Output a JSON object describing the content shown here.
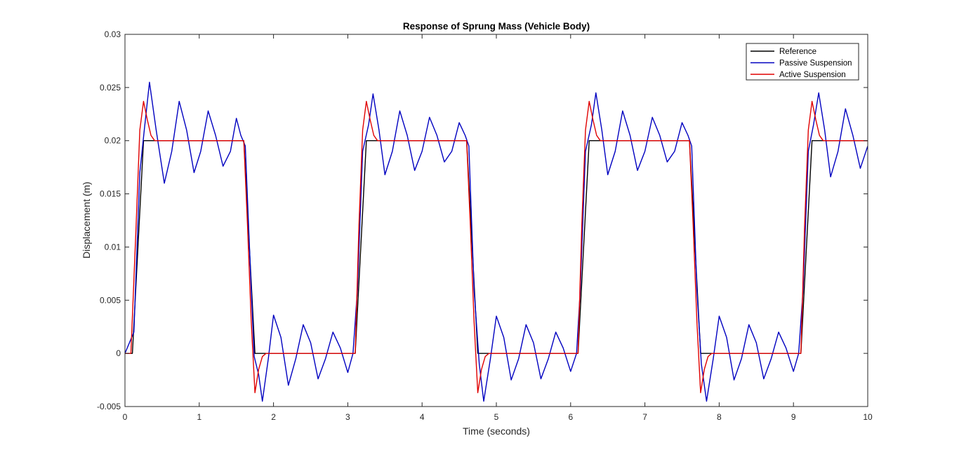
{
  "chart_data": {
    "type": "line",
    "title": "Response of Sprung Mass (Vehicle Body)",
    "xlabel": "Time (seconds)",
    "ylabel": "Displacement (m)",
    "xlim": [
      0,
      10
    ],
    "ylim": [
      -0.005,
      0.03
    ],
    "xticks": [
      0,
      1,
      2,
      3,
      4,
      5,
      6,
      7,
      8,
      9,
      10
    ],
    "xtick_labels": [
      "0",
      "1",
      "2",
      "3",
      "4",
      "5",
      "6",
      "7",
      "8",
      "9",
      "10"
    ],
    "yticks": [
      -0.005,
      0,
      0.005,
      0.01,
      0.015,
      0.02,
      0.025,
      0.03
    ],
    "ytick_labels": [
      "-0.005",
      "0",
      "0.005",
      "0.01",
      "0.015",
      "0.02",
      "0.025",
      "0.03"
    ],
    "grid": false,
    "legend_position": "top-right",
    "series": [
      {
        "name": "Reference",
        "color": "#000000",
        "x": [
          0,
          0.1,
          0.25,
          1.6,
          1.75,
          3.1,
          3.25,
          4.6,
          4.75,
          6.1,
          6.25,
          7.6,
          7.75,
          9.1,
          9.25,
          10
        ],
        "y": [
          0,
          0,
          0.02,
          0.02,
          0,
          0,
          0.02,
          0.02,
          0,
          0,
          0.02,
          0.02,
          0,
          0,
          0.02,
          0.02
        ]
      },
      {
        "name": "Passive Suspension",
        "color": "#0000c0",
        "x": [
          0,
          0.12,
          0.2,
          0.26,
          0.33,
          0.42,
          0.53,
          0.63,
          0.73,
          0.83,
          0.93,
          1.02,
          1.12,
          1.22,
          1.32,
          1.42,
          1.5,
          1.56,
          1.62,
          1.7,
          1.74,
          1.8,
          1.85,
          1.93,
          2.0,
          2.1,
          2.2,
          2.3,
          2.4,
          2.5,
          2.6,
          2.7,
          2.8,
          2.9,
          3.0,
          3.07,
          3.13,
          3.2,
          3.28,
          3.34,
          3.42,
          3.5,
          3.6,
          3.7,
          3.8,
          3.9,
          4.0,
          4.1,
          4.2,
          4.3,
          4.4,
          4.5,
          4.58,
          4.63,
          4.7,
          4.77,
          4.83,
          4.92,
          5.0,
          5.1,
          5.2,
          5.3,
          5.4,
          5.5,
          5.6,
          5.7,
          5.8,
          5.9,
          6.0,
          6.08,
          6.13,
          6.2,
          6.28,
          6.34,
          6.42,
          6.5,
          6.6,
          6.7,
          6.8,
          6.9,
          7.0,
          7.1,
          7.2,
          7.3,
          7.4,
          7.5,
          7.58,
          7.63,
          7.7,
          7.76,
          7.83,
          7.92,
          8.0,
          8.1,
          8.2,
          8.3,
          8.4,
          8.5,
          8.6,
          8.7,
          8.8,
          8.9,
          9.0,
          9.07,
          9.13,
          9.2,
          9.27,
          9.34,
          9.42,
          9.5,
          9.6,
          9.7,
          9.8,
          9.9,
          10.0
        ],
        "y": [
          0,
          0.002,
          0.017,
          0.021,
          0.0255,
          0.021,
          0.016,
          0.019,
          0.0237,
          0.021,
          0.017,
          0.019,
          0.0228,
          0.0205,
          0.0176,
          0.019,
          0.0221,
          0.0205,
          0.0195,
          0.006,
          -0.0003,
          -0.002,
          -0.0045,
          -0.0005,
          0.0036,
          0.0015,
          -0.003,
          -0.0005,
          0.0027,
          0.001,
          -0.0024,
          -0.0005,
          0.002,
          0.0005,
          -0.0018,
          0.0,
          0.006,
          0.019,
          0.0215,
          0.0244,
          0.021,
          0.0168,
          0.019,
          0.0228,
          0.0205,
          0.0172,
          0.019,
          0.0222,
          0.0205,
          0.018,
          0.019,
          0.0217,
          0.0205,
          0.0195,
          0.006,
          -0.001,
          -0.0045,
          -0.0005,
          0.0035,
          0.0015,
          -0.0025,
          -0.0005,
          0.0027,
          0.001,
          -0.0024,
          -0.0005,
          0.002,
          0.0005,
          -0.0017,
          0.0,
          0.006,
          0.019,
          0.0215,
          0.0245,
          0.021,
          0.0168,
          0.019,
          0.0228,
          0.0205,
          0.0172,
          0.019,
          0.0222,
          0.0205,
          0.018,
          0.019,
          0.0217,
          0.0205,
          0.0195,
          0.006,
          -0.001,
          -0.0045,
          -0.0005,
          0.0035,
          0.0015,
          -0.0025,
          -0.0005,
          0.0027,
          0.001,
          -0.0024,
          -0.0005,
          0.002,
          0.0005,
          -0.0017,
          0.0,
          0.006,
          0.019,
          0.0215,
          0.0245,
          0.021,
          0.0166,
          0.019,
          0.023,
          0.0205,
          0.0174,
          0.0195
        ]
      },
      {
        "name": "Active Suspension",
        "color": "#e00000",
        "x": [
          0,
          0.08,
          0.15,
          0.2,
          0.25,
          0.3,
          0.35,
          0.4,
          1.6,
          1.65,
          1.7,
          1.75,
          1.8,
          1.85,
          1.9,
          3.1,
          3.15,
          3.2,
          3.25,
          3.3,
          3.35,
          3.4,
          4.6,
          4.65,
          4.7,
          4.75,
          4.8,
          4.85,
          4.9,
          6.1,
          6.15,
          6.2,
          6.25,
          6.3,
          6.35,
          6.4,
          7.6,
          7.65,
          7.7,
          7.75,
          7.8,
          7.85,
          7.9,
          9.1,
          9.15,
          9.2,
          9.25,
          9.3,
          9.35,
          9.4,
          10.0
        ],
        "y": [
          0,
          0,
          0.012,
          0.021,
          0.0237,
          0.022,
          0.0205,
          0.02,
          0.02,
          0.012,
          0.003,
          -0.0037,
          -0.0015,
          -0.0003,
          0,
          0,
          0.012,
          0.021,
          0.0237,
          0.022,
          0.0205,
          0.02,
          0.02,
          0.012,
          0.003,
          -0.0037,
          -0.0015,
          -0.0003,
          0,
          0,
          0.012,
          0.021,
          0.0237,
          0.022,
          0.0205,
          0.02,
          0.02,
          0.012,
          0.003,
          -0.0037,
          -0.0015,
          -0.0003,
          0,
          0,
          0.012,
          0.021,
          0.0237,
          0.022,
          0.0205,
          0.02,
          0.02
        ]
      }
    ]
  }
}
